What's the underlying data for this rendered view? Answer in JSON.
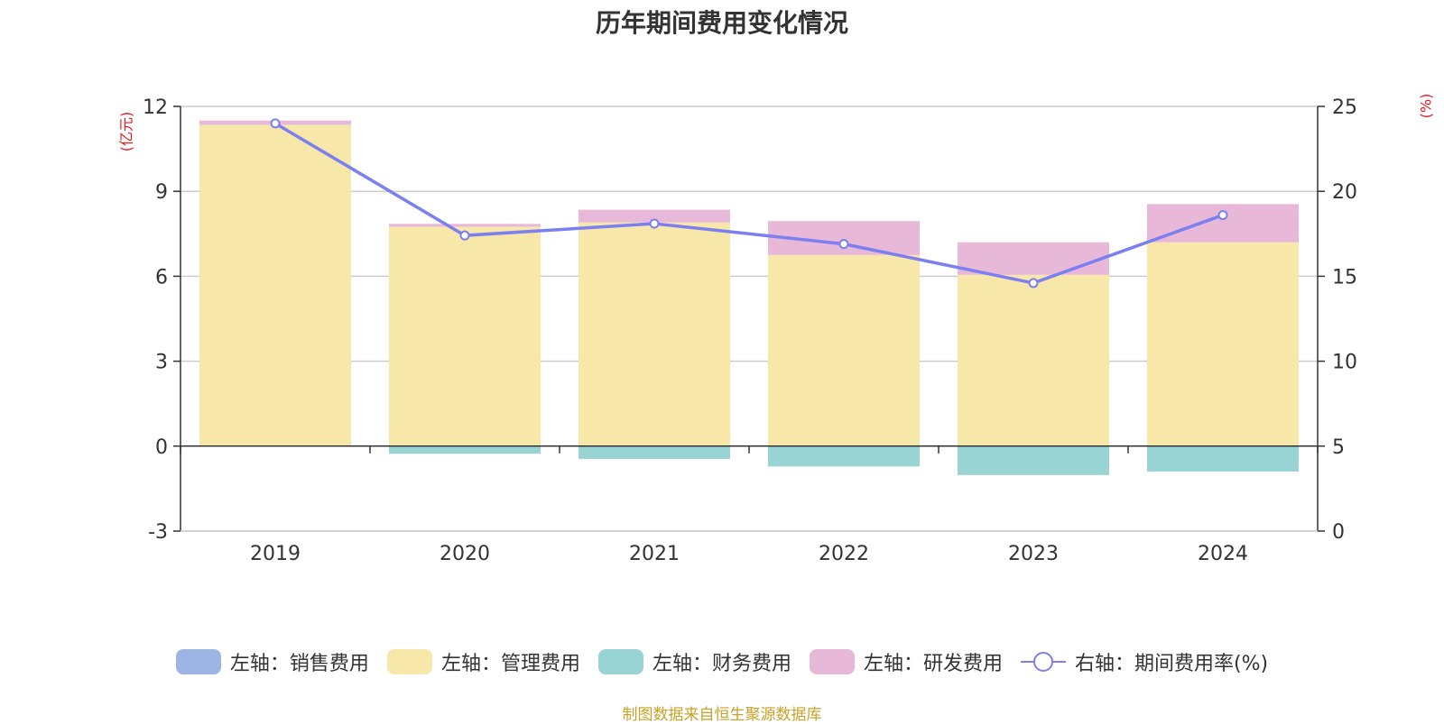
{
  "title": "历年期间费用变化情况",
  "left_unit": "(亿元)",
  "right_unit": "(%)",
  "source": "制图数据来自恒生聚源数据库",
  "chart_data": {
    "type": "bar",
    "stacked": true,
    "categories": [
      "2019",
      "2020",
      "2021",
      "2022",
      "2023",
      "2024"
    ],
    "y_left": {
      "ticks": [
        "12",
        "9",
        "6",
        "3",
        "0",
        "-3"
      ],
      "min": -3,
      "max": 12
    },
    "y_right": {
      "ticks": [
        "25",
        "20",
        "15",
        "10",
        "5",
        "0"
      ],
      "min": 0,
      "max": 25
    },
    "series": [
      {
        "name": "左轴：销售费用",
        "axis": "left",
        "kind": "bar",
        "color": "#9db5e3",
        "values": [
          0,
          0,
          0,
          0,
          0,
          0
        ]
      },
      {
        "name": "左轴：管理费用",
        "axis": "left",
        "kind": "bar",
        "color": "#f7e7a9",
        "values": [
          11.35,
          7.75,
          7.9,
          6.75,
          6.05,
          7.2
        ]
      },
      {
        "name": "左轴：财务费用",
        "axis": "left",
        "kind": "bar",
        "color": "#98d4d4",
        "values": [
          0,
          -0.27,
          -0.45,
          -0.72,
          -1.02,
          -0.9
        ]
      },
      {
        "name": "左轴：研发费用",
        "axis": "left",
        "kind": "bar",
        "color": "#e8b8d8",
        "values": [
          0.15,
          0.1,
          0.45,
          1.2,
          1.15,
          1.35
        ]
      },
      {
        "name": "右轴：期间费用率(%)",
        "axis": "right",
        "kind": "line",
        "color": "#7b7ff0",
        "values": [
          24.0,
          17.4,
          18.1,
          16.9,
          14.6,
          18.6
        ]
      }
    ],
    "legend_position": "bottom",
    "grid": true
  }
}
